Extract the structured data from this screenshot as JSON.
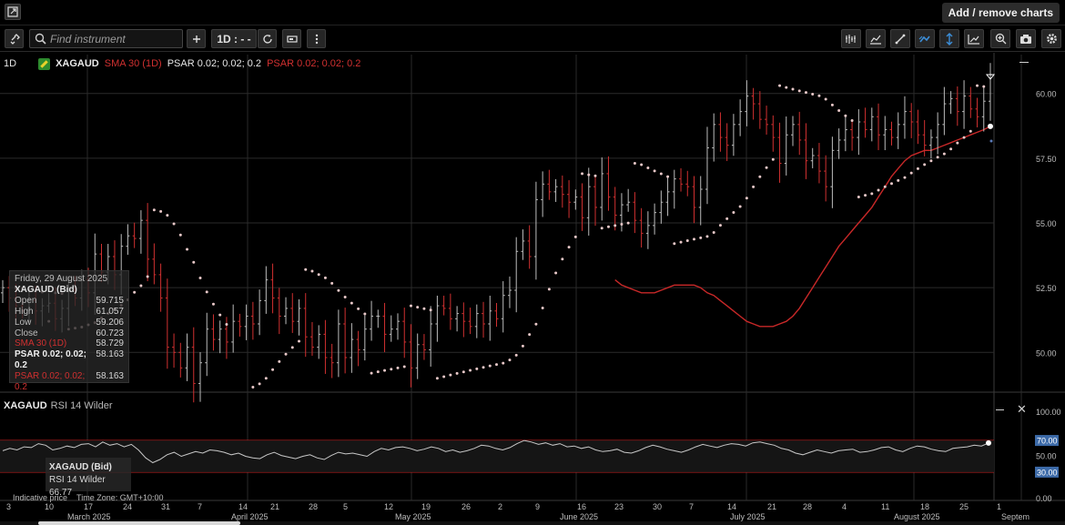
{
  "topbar": {
    "add_remove_label": "Add / remove charts"
  },
  "toolbar": {
    "search_placeholder": "Find instrument",
    "timeframe_label": "1D : - -",
    "icons": [
      "link-icon",
      "search-icon",
      "plus-icon",
      "timeframe",
      "refresh-icon",
      "chart-type-icon",
      "more-icon",
      "bars-icon",
      "indicators-icon",
      "drawing-line-icon",
      "drawing-tools-icon",
      "cursor-icon",
      "trend-icon",
      "zoom-icon",
      "camera-icon",
      "settings-icon"
    ]
  },
  "legend": {
    "timeframe": "1D",
    "symbol": "XAGAUD",
    "sma": "SMA 30 (1D)",
    "psar_white": "PSAR 0.02; 0.02; 0.2",
    "psar_red": "PSAR 0.02; 0.02; 0.2"
  },
  "tooltip": {
    "date": "Friday, 29 August 2025",
    "title": "XAGAUD (Bid)",
    "rows": [
      {
        "label": "Open",
        "value": "59.715"
      },
      {
        "label": "High",
        "value": "61.057"
      },
      {
        "label": "Low",
        "value": "59.206"
      },
      {
        "label": "Close",
        "value": "60.723"
      }
    ],
    "sma": {
      "label": "SMA 30 (1D)",
      "value": "58.729"
    },
    "psar_white": {
      "label": "PSAR 0.02; 0.02; 0.2",
      "value": "58.163"
    },
    "psar_red": {
      "label": "PSAR 0.02; 0.02; 0.2",
      "value": "58.163"
    }
  },
  "rsi": {
    "symbol": "XAGAUD",
    "indicator": "RSI 14 Wilder",
    "tooltip_title": "XAGAUD (Bid)",
    "tooltip_value": "RSI 14 Wilder 66.77",
    "axis": [
      "100.00",
      "70.00",
      "50.00",
      "30.00",
      "0.00"
    ],
    "upper_level": 70,
    "lower_level": 30
  },
  "price_axis": {
    "ticks": [
      "60.00",
      "57.50",
      "55.00",
      "52.50",
      "50.00"
    ]
  },
  "status": {
    "indicative": "Indicative price",
    "timezone": "Time Zone: GMT+10:00"
  },
  "x_axis": {
    "days": [
      "3",
      "10",
      "17",
      "24",
      "31",
      "7",
      "14",
      "21",
      "28",
      "5",
      "12",
      "19",
      "26",
      "2",
      "9",
      "16",
      "23",
      "30",
      "7",
      "14",
      "21",
      "28",
      "4",
      "11",
      "18",
      "25",
      "1"
    ],
    "months": [
      "March 2025",
      "April 2025",
      "May 2025",
      "June 2025",
      "July 2025",
      "August 2025",
      "Septem"
    ]
  },
  "colors": {
    "sma": "#c82828",
    "psar": "#e8c8c8",
    "up": "#bdbdbd",
    "down": "#d03030",
    "rsi_band": "#c02020",
    "rsi_badge": "#3c6aa8"
  },
  "chart_data": {
    "type": "candlestick",
    "y_axis_range": [
      48.5,
      61.5
    ],
    "closes": [
      52.5,
      52.1,
      51.8,
      51.6,
      52.0,
      51.6,
      51.8,
      51.9,
      51.3,
      51.7,
      52.4,
      52.1,
      52.8,
      52.3,
      53.8,
      53.1,
      53.7,
      53.0,
      54.1,
      54.5,
      54.4,
      55.1,
      53.6,
      53.0,
      52.1,
      50.2,
      50.0,
      49.4,
      50.2,
      48.8,
      49.6,
      50.9,
      50.5,
      50.9,
      50.4,
      51.2,
      51.0,
      51.4,
      51.1,
      52.0,
      52.8,
      52.1,
      51.4,
      51.7,
      51.2,
      51.7,
      50.6,
      50.2,
      50.7,
      49.8,
      49.6,
      51.1,
      49.8,
      50.5,
      50.1,
      50.9,
      51.4,
      51.4,
      50.7,
      50.9,
      51.2,
      50.4,
      49.4,
      50.3,
      50.1,
      51.1,
      51.8,
      51.7,
      51.3,
      51.5,
      51.2,
      51.0,
      51.5,
      51.1,
      51.6,
      51.3,
      52.2,
      52.4,
      53.9,
      54.3,
      53.7,
      55.9,
      56.5,
      56.2,
      56.4,
      56.1,
      55.8,
      56.0,
      55.2,
      56.4,
      55.6,
      56.9,
      56.0,
      55.3,
      55.7,
      55.8,
      55.1,
      54.6,
      54.9,
      55.4,
      55.8,
      56.2,
      56.7,
      56.5,
      56.4,
      55.6,
      56.3,
      57.9,
      58.8,
      58.3,
      58.0,
      58.8,
      59.3,
      59.9,
      59.6,
      59.0,
      58.8,
      58.3,
      57.3,
      58.4,
      58.8,
      58.2,
      57.4,
      57.6,
      57.0,
      56.4,
      57.8,
      58.2,
      58.6,
      58.3,
      58.9,
      58.6,
      59.1,
      58.4,
      58.6,
      58.3,
      58.8,
      59.3,
      58.9,
      58.4,
      58.0,
      58.3,
      58.8,
      59.6,
      59.8,
      59.3,
      59.9,
      59.4,
      59.1,
      59.7,
      60.72
    ],
    "sma30": [
      52.8,
      52.6,
      52.5,
      52.4,
      52.3,
      52.3,
      52.3,
      52.4,
      52.5,
      52.6,
      52.6,
      52.6,
      52.6,
      52.5,
      52.3,
      52.2,
      52.0,
      51.8,
      51.6,
      51.4,
      51.2,
      51.1,
      51.0,
      51.0,
      51.0,
      51.1,
      51.2,
      51.4,
      51.7,
      52.1,
      52.5,
      52.9,
      53.3,
      53.7,
      54.1,
      54.4,
      54.7,
      55.0,
      55.3,
      55.6,
      56.0,
      56.4,
      56.8,
      57.1,
      57.4,
      57.6,
      57.7,
      57.8,
      57.8,
      57.9,
      58.0,
      58.1,
      58.2,
      58.3,
      58.4,
      58.5,
      58.6,
      58.73
    ],
    "rsi": [
      57,
      60,
      58,
      62,
      61,
      66,
      64,
      58,
      60,
      63,
      61,
      65,
      66,
      62,
      68,
      64,
      66,
      62,
      65,
      58,
      48,
      42,
      46,
      52,
      55,
      50,
      53,
      56,
      54,
      58,
      57,
      55,
      52,
      54,
      50,
      48,
      47,
      52,
      55,
      51,
      49,
      47,
      50,
      52,
      48,
      46,
      51,
      55,
      53,
      54,
      52,
      50,
      56,
      60,
      58,
      61,
      62,
      60,
      57,
      59,
      62,
      60,
      56,
      58,
      55,
      57,
      60,
      64,
      63,
      60,
      58,
      61,
      66,
      70,
      68,
      65,
      67,
      64,
      66,
      62,
      63,
      60,
      62,
      58,
      56,
      57,
      59,
      55,
      54,
      57,
      61,
      64,
      62,
      59,
      57,
      55,
      58,
      62,
      65,
      63,
      61,
      64,
      66,
      65,
      63,
      67,
      68,
      66,
      64,
      60,
      58,
      54,
      52,
      55,
      58,
      56,
      54,
      57,
      58,
      59,
      55,
      56,
      58,
      61,
      62,
      58,
      56,
      60,
      63,
      62,
      59,
      57,
      56,
      60,
      61,
      62,
      64,
      63,
      66.77
    ]
  }
}
